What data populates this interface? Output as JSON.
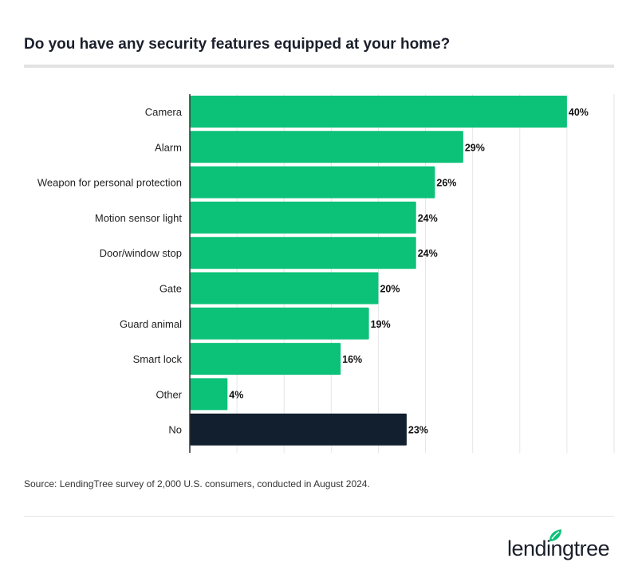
{
  "title": "Do you have any security features equipped at your home?",
  "source": "Source: LendingTree survey of 2,000 U.S. consumers, conducted in August 2024.",
  "logo": {
    "text": "lendingtree",
    "color": "#1a1f2b",
    "leaf_color": "#0cc178"
  },
  "chart_data": {
    "type": "bar",
    "orientation": "horizontal",
    "categories": [
      "Camera",
      "Alarm",
      "Weapon for personal protection",
      "Motion sensor light",
      "Door/window stop",
      "Gate",
      "Guard animal",
      "Smart lock",
      "Other",
      "No"
    ],
    "values": [
      40,
      29,
      26,
      24,
      24,
      20,
      19,
      16,
      4,
      23
    ],
    "value_labels": [
      "40%",
      "29%",
      "26%",
      "24%",
      "24%",
      "20%",
      "19%",
      "16%",
      "4%",
      "23%"
    ],
    "colors": [
      "#0cc178",
      "#0cc178",
      "#0cc178",
      "#0cc178",
      "#0cc178",
      "#0cc178",
      "#0cc178",
      "#0cc178",
      "#0cc178",
      "#121f2e"
    ],
    "xlim": [
      0,
      45
    ],
    "grid": true,
    "grid_step": 5
  }
}
